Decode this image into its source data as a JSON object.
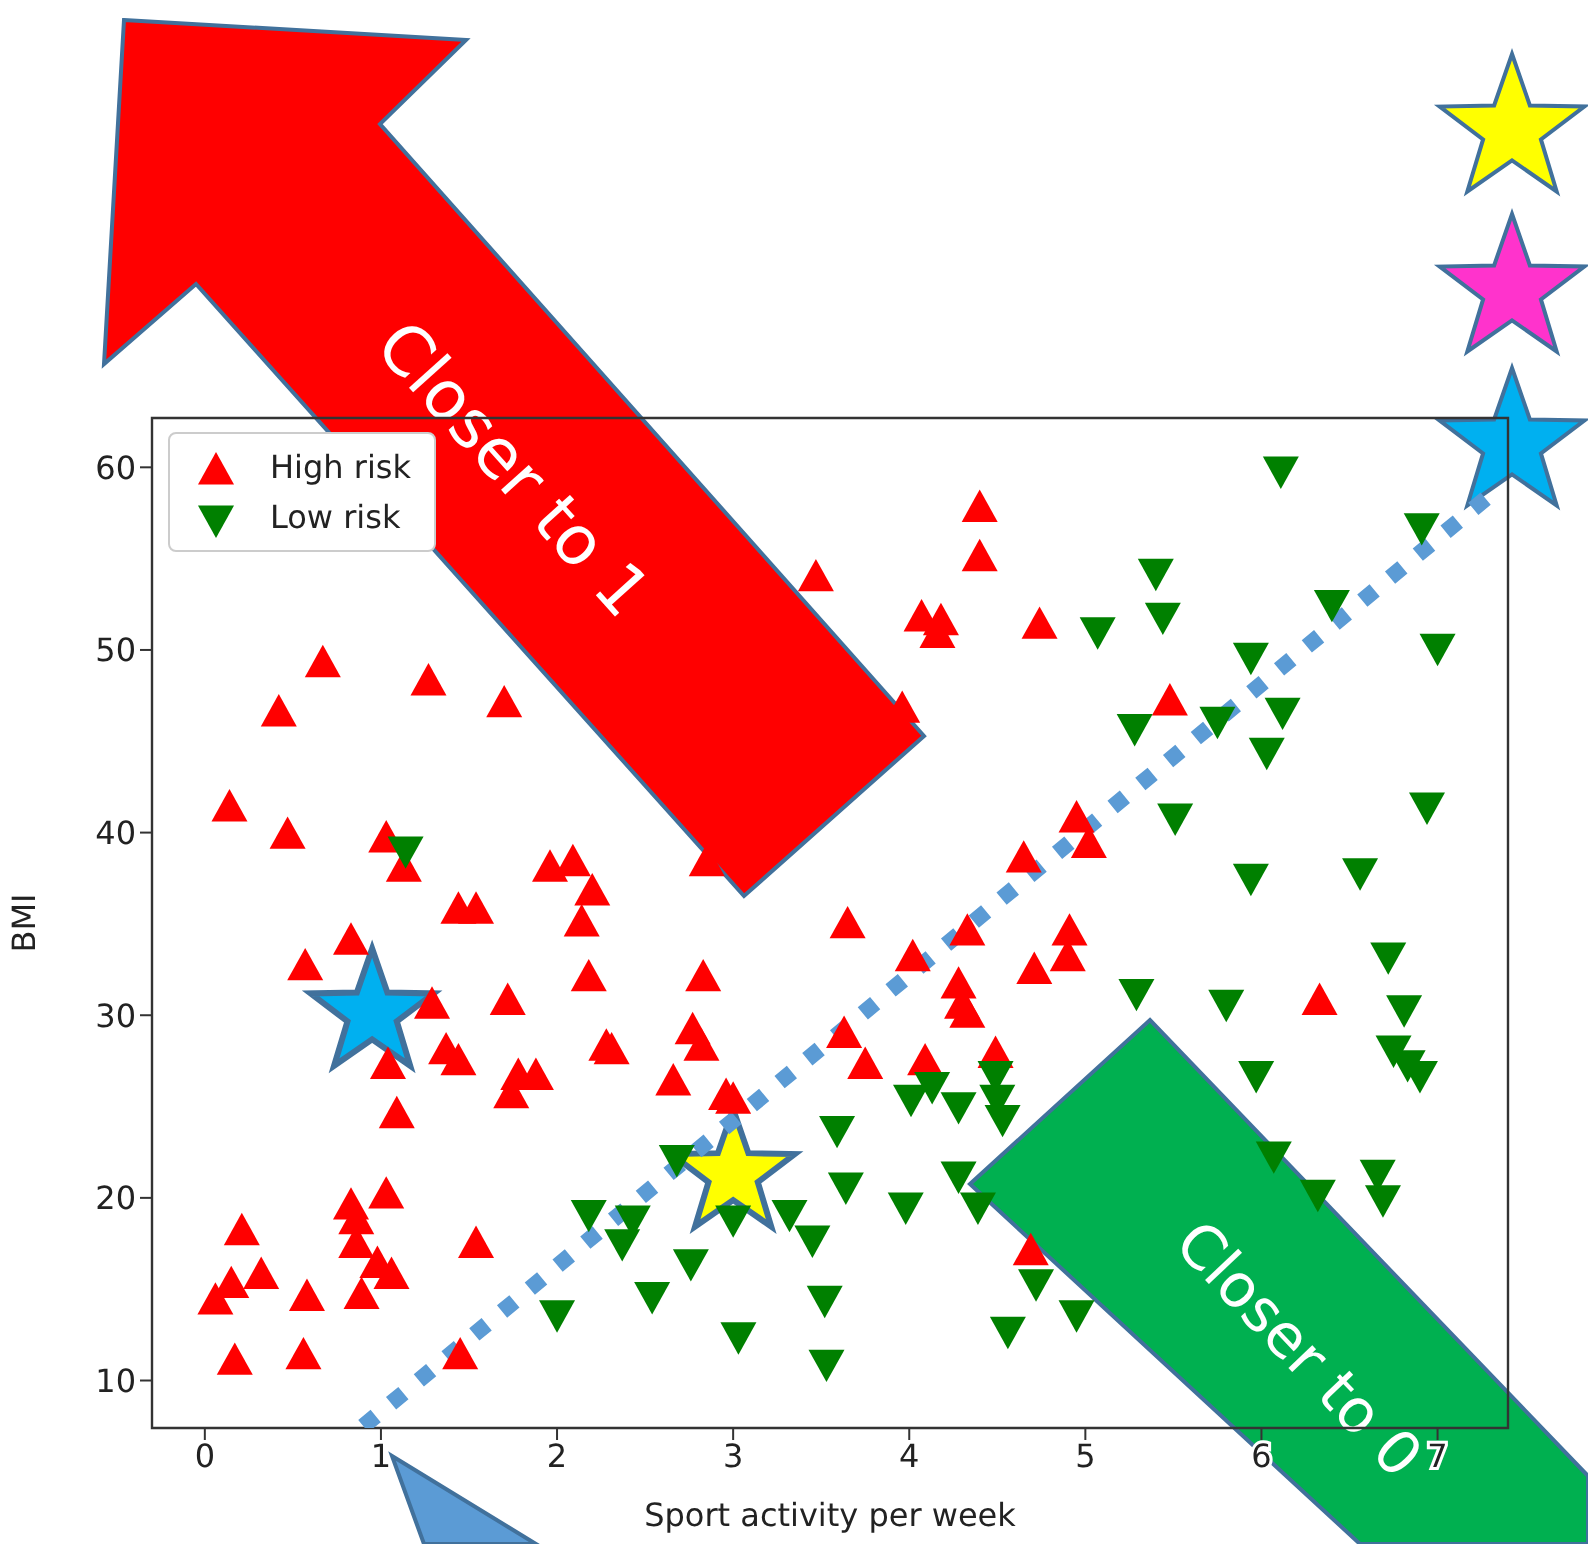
{
  "chart_data": {
    "type": "scatter",
    "xlabel": "Sport activity per week",
    "ylabel": "BMI",
    "xlim": [
      -0.3,
      7.4
    ],
    "ylim": [
      7.4,
      62.7
    ],
    "xticks": [
      0,
      1,
      2,
      3,
      4,
      5,
      6,
      7
    ],
    "yticks": [
      10,
      20,
      30,
      40,
      50,
      60
    ],
    "legend": "top left",
    "annotations": [
      "Closer to 1",
      "Closer to 0"
    ],
    "series": [
      {
        "marker": "star",
        "colors": [
          "#00b0f0",
          "#ffff00"
        ],
        "x": [
          0.95,
          3.0
        ],
        "values": [
          30.1,
          21.3
        ]
      },
      {
        "type": "line",
        "line_style": "dotted",
        "color": "#5b9bd5",
        "x": [
          0.9,
          7.3
        ],
        "values": [
          7.5,
          58.5
        ]
      },
      {
        "name": "High risk",
        "marker": "triangle",
        "color": "#ff0000",
        "x": [
          0.67,
          0.42,
          1.27,
          1.7,
          0.14,
          0.47,
          1.03,
          1.13,
          1.96,
          2.09,
          2.2,
          2.14,
          1.44,
          1.54,
          0.83,
          0.57,
          2.18,
          2.83,
          1.72,
          1.29,
          1.37,
          1.44,
          2.28,
          2.31,
          2.77,
          2.82,
          1.78,
          1.88,
          1.74,
          2.66,
          1.04,
          1.09,
          2.96,
          3.0,
          3.63,
          3.65,
          0.83,
          0.86,
          1.03,
          0.86,
          0.98,
          1.06,
          0.89,
          0.21,
          0.15,
          0.06,
          0.32,
          0.58,
          1.54,
          0.17,
          0.56,
          1.45,
          3.47,
          2.85,
          4.4,
          4.4,
          4.07,
          4.18,
          4.16,
          4.74,
          3.96,
          5.48,
          4.95,
          5.02,
          4.65,
          4.33,
          4.91,
          4.02,
          4.9,
          4.71,
          4.28,
          4.3,
          4.33,
          3.75,
          4.09,
          4.49,
          6.33,
          4.69
        ],
        "values": [
          49.3,
          46.6,
          48.3,
          47.1,
          41.4,
          39.9,
          39.7,
          38.1,
          38.1,
          38.4,
          36.8,
          35.1,
          35.8,
          35.8,
          34.1,
          32.7,
          32.1,
          32.1,
          30.8,
          30.6,
          28.1,
          27.5,
          28.3,
          28.1,
          29.2,
          28.3,
          26.7,
          26.7,
          25.7,
          26.4,
          27.3,
          24.6,
          25.6,
          25.4,
          29.0,
          35.0,
          19.6,
          18.8,
          20.2,
          17.5,
          16.4,
          15.8,
          14.7,
          18.2,
          15.3,
          14.4,
          15.8,
          14.6,
          17.5,
          11.1,
          11.4,
          11.4,
          54.0,
          38.4,
          57.8,
          55.1,
          51.8,
          51.6,
          50.9,
          51.4,
          46.8,
          47.2,
          40.8,
          39.4,
          38.6,
          34.6,
          34.6,
          33.2,
          33.2,
          32.5,
          31.7,
          30.6,
          30.1,
          27.3,
          27.5,
          27.9,
          30.8,
          17.1
        ]
      },
      {
        "name": "Low risk",
        "marker": "triangle-down",
        "color": "#008000",
        "x": [
          1.14,
          6.11,
          6.91,
          5.4,
          5.44,
          5.07,
          6.4,
          7.0,
          5.94,
          6.12,
          6.03,
          5.75,
          5.28,
          5.51,
          6.94,
          5.94,
          6.56,
          6.72,
          6.81,
          5.29,
          5.8,
          6.75,
          6.83,
          6.9,
          5.97,
          4.01,
          4.13,
          4.28,
          4.49,
          4.5,
          4.53,
          3.59,
          3.64,
          3.98,
          4.28,
          4.39,
          6.07,
          6.32,
          6.66,
          6.69,
          4.72,
          4.95,
          4.56,
          3.52,
          3.53,
          3.32,
          3.45,
          2.18,
          2.43,
          2.37,
          2.68,
          2.76,
          2.54,
          3.0,
          3.03,
          2.0
        ],
        "values": [
          39.0,
          59.8,
          56.7,
          54.2,
          51.8,
          51.0,
          52.5,
          50.1,
          49.6,
          46.6,
          44.4,
          46.1,
          45.7,
          40.8,
          41.4,
          37.5,
          37.8,
          33.2,
          30.3,
          31.2,
          30.6,
          28.1,
          27.3,
          26.7,
          26.7,
          25.4,
          26.1,
          25.0,
          26.7,
          25.4,
          24.3,
          23.7,
          20.6,
          19.5,
          21.2,
          19.5,
          22.3,
          20.2,
          21.3,
          19.9,
          15.3,
          13.6,
          12.7,
          14.4,
          10.9,
          19.1,
          17.7,
          19.1,
          18.8,
          17.5,
          22.1,
          16.4,
          14.6,
          18.8,
          12.4,
          13.6
        ]
      }
    ]
  }
}
